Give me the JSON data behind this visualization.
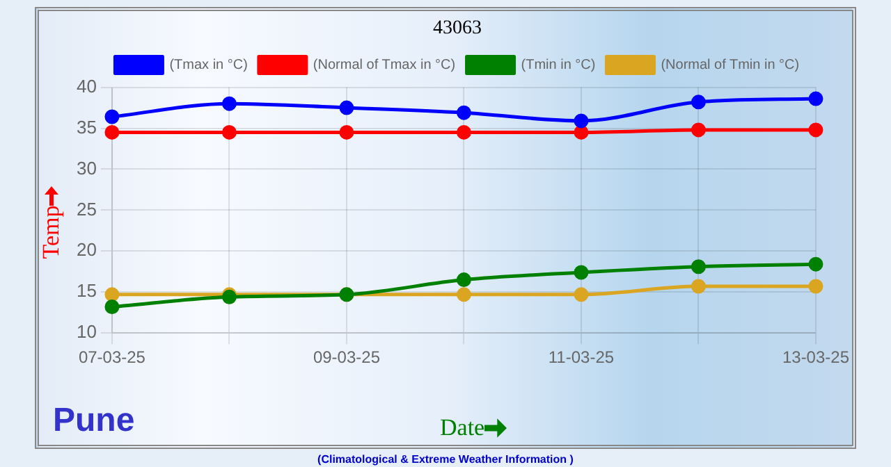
{
  "chart_data": {
    "type": "line",
    "title": "43063",
    "xlabel": "Date",
    "ylabel": "Temp",
    "categories": [
      "07-03-25",
      null,
      "09-03-25",
      null,
      "11-03-25",
      null,
      "13-03-25"
    ],
    "series": [
      {
        "name": "(Tmax in °C)",
        "color": "#0000ff",
        "values": [
          36.4,
          38.0,
          37.5,
          36.9,
          35.9,
          38.2,
          38.6
        ]
      },
      {
        "name": "(Normal of Tmax in °C)",
        "color": "#ff0000",
        "values": [
          34.5,
          34.5,
          34.5,
          34.5,
          34.5,
          34.8,
          34.8
        ]
      },
      {
        "name": "(Tmin in °C)",
        "color": "#008000",
        "values": [
          13.2,
          14.4,
          14.7,
          16.5,
          17.4,
          18.1,
          18.4
        ]
      },
      {
        "name": "(Normal of Tmin in °C)",
        "color": "#daa520",
        "values": [
          14.7,
          14.7,
          14.7,
          14.7,
          14.7,
          15.7,
          15.7
        ]
      }
    ],
    "ylim": [
      10,
      40
    ],
    "yticks": [
      10,
      15,
      20,
      25,
      30,
      35,
      40
    ],
    "grid": true,
    "legend": "top",
    "marker": "circle",
    "line_style": "solid",
    "annotations": [
      "Pune",
      "(Climatological & Extreme Weather Information )"
    ]
  }
}
